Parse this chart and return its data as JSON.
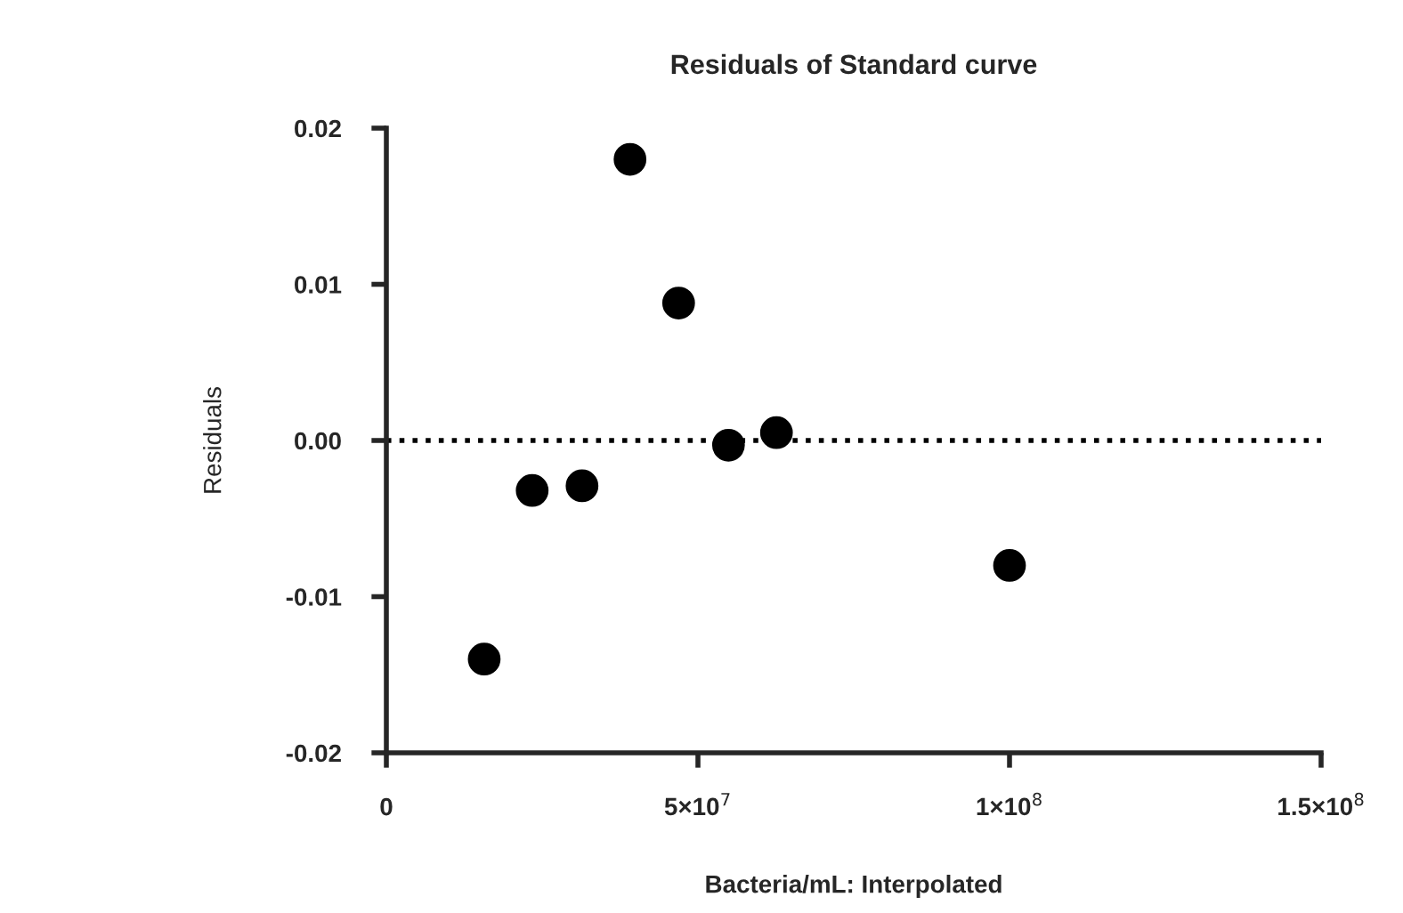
{
  "chart_data": {
    "type": "scatter",
    "title": "Residuals of Standard curve",
    "xlabel": "Bacteria/mL: Interpolated",
    "ylabel": "Residuals",
    "x": [
      15700000,
      23400000,
      31400000,
      39100000,
      46900000,
      54900000,
      62600000,
      100000000
    ],
    "values": [
      -0.014,
      -0.0032,
      -0.0029,
      0.018,
      0.0088,
      -0.0003,
      0.0005,
      -0.008
    ],
    "color": "#000000",
    "marker": "circle",
    "xlim": [
      0,
      150000000
    ],
    "xticks": [
      0,
      {
        "value": 50000000,
        "label": "5×10$^{7}$"
      },
      {
        "value": 100000000,
        "label": "1×10$^{8}$"
      },
      {
        "value": 150000000,
        "label": "1.5×10$^{8}$"
      }
    ],
    "ylim": [
      -0.02,
      0.02
    ],
    "yticks": [
      {
        "value": -0.02,
        "label": "-0.02"
      },
      {
        "value": -0.01,
        "label": "-0.01"
      },
      {
        "value": 0,
        "label": "0.00"
      },
      {
        "value": 0.01,
        "label": "0.01"
      },
      {
        "value": 0.02,
        "label": "0.02"
      }
    ],
    "ref_lines": [
      {
        "axis": "y",
        "value": 0,
        "line_style": "dotted",
        "color": "#000000"
      }
    ],
    "grid": false,
    "legend": false
  }
}
